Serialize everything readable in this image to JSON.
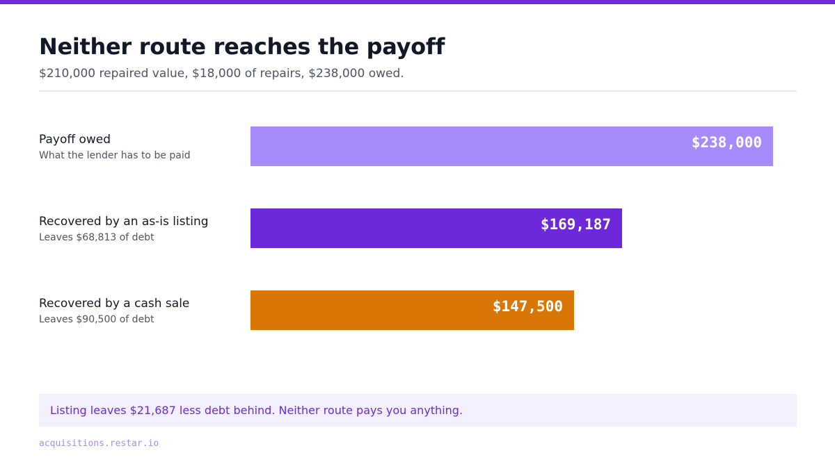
{
  "colors": {
    "accent": "#6d28d9",
    "payoff_bar": "#a78bfa",
    "listing_bar": "#6d28d9",
    "cash_bar": "#d97706",
    "callout_bg": "#f3f0fd"
  },
  "header": {
    "title": "Neither route reaches the payoff",
    "subtitle": "$210,000 repaired value, $18,000 of repairs, $238,000 owed."
  },
  "chart_data": {
    "type": "bar",
    "orientation": "horizontal",
    "categories": [
      "Payoff owed",
      "Recovered by an as-is listing",
      "Recovered by a cash sale"
    ],
    "notes": [
      "What the lender has to be paid",
      "Leaves $68,813 of debt",
      "Leaves $90,500 of debt"
    ],
    "values": [
      238000,
      169187,
      147500
    ],
    "value_labels": [
      "$238,000",
      "$169,187",
      "$147,500"
    ],
    "colors": [
      "#a78bfa",
      "#6d28d9",
      "#d97706"
    ],
    "xlim": [
      0,
      250000
    ],
    "grid": false
  },
  "callout": {
    "text": "Listing leaves $21,687 less debt behind. Neither route pays you anything."
  },
  "footer": {
    "text": "acquisitions.restar.io"
  }
}
